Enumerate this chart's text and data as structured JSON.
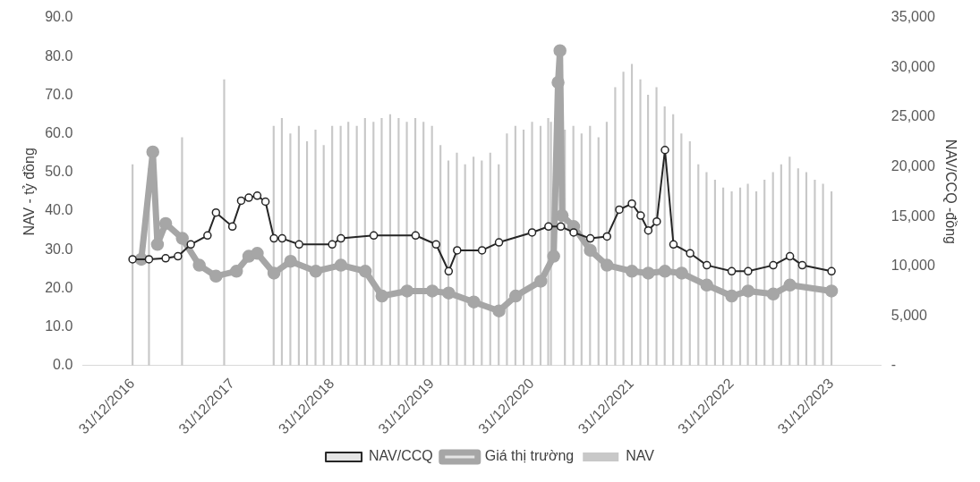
{
  "chart_data": {
    "type": "bar",
    "ylabel": "NAV - tỷ đồng",
    "y2label": "NAV/CCQ -đồng",
    "legend": "bottom",
    "grid": false,
    "xlim": [
      "2016-12-31",
      "2023-12-31"
    ],
    "xticks": [
      {
        "value": "2016-12-31",
        "label": "31/12/2016"
      },
      {
        "value": "2017-12-31",
        "label": "31/12/2017"
      },
      {
        "value": "2018-12-31",
        "label": "31/12/2018"
      },
      {
        "value": "2019-12-31",
        "label": "31/12/2019"
      },
      {
        "value": "2020-12-31",
        "label": "31/12/2020"
      },
      {
        "value": "2021-12-31",
        "label": "31/12/2021"
      },
      {
        "value": "2022-12-31",
        "label": "31/12/2022"
      },
      {
        "value": "2023-12-31",
        "label": "31/12/2023"
      }
    ],
    "ylim": [
      0,
      90
    ],
    "yticks": [
      {
        "value": 0,
        "label": "0.0"
      },
      {
        "value": 10,
        "label": "10.0"
      },
      {
        "value": 20,
        "label": "20.0"
      },
      {
        "value": 30,
        "label": "30.0"
      },
      {
        "value": 40,
        "label": "40.0"
      },
      {
        "value": 50,
        "label": "50.0"
      },
      {
        "value": 60,
        "label": "60.0"
      },
      {
        "value": 70,
        "label": "70.0"
      },
      {
        "value": 80,
        "label": "80.0"
      },
      {
        "value": 90,
        "label": "90.0"
      }
    ],
    "y2lim": [
      0,
      35000
    ],
    "y2ticks": [
      {
        "value": 0,
        "label": "-"
      },
      {
        "value": 5000,
        "label": "5,000"
      },
      {
        "value": 10000,
        "label": "10,000"
      },
      {
        "value": 15000,
        "label": "15,000"
      },
      {
        "value": 20000,
        "label": "20,000"
      },
      {
        "value": 25000,
        "label": "25,000"
      },
      {
        "value": 30000,
        "label": "30,000"
      },
      {
        "value": 35000,
        "label": "35,000"
      }
    ],
    "series": [
      {
        "name": "NAV",
        "color": "#c8c8c8",
        "x": [
          "2016-12-31",
          "2017-03-01",
          "2017-06-30",
          "2017-12-01",
          "2018-05-31",
          "2018-06-30",
          "2018-07-31",
          "2018-08-31",
          "2018-09-30",
          "2018-10-31",
          "2018-11-30",
          "2018-12-31",
          "2019-01-31",
          "2019-02-28",
          "2019-03-31",
          "2019-04-30",
          "2019-05-31",
          "2019-06-30",
          "2019-07-31",
          "2019-08-31",
          "2019-09-30",
          "2019-10-31",
          "2019-11-30",
          "2019-12-31",
          "2020-01-31",
          "2020-02-29",
          "2020-03-31",
          "2020-04-30",
          "2020-05-31",
          "2020-06-30",
          "2020-07-31",
          "2020-08-31",
          "2020-09-30",
          "2020-10-31",
          "2020-11-30",
          "2020-12-31",
          "2021-01-31",
          "2021-02-28",
          "2021-03-10",
          "2021-04-30",
          "2021-05-31",
          "2021-06-30",
          "2021-07-31",
          "2021-08-31",
          "2021-09-30",
          "2021-10-31",
          "2021-11-30",
          "2021-12-31",
          "2022-01-31",
          "2022-02-28",
          "2022-03-31",
          "2022-04-30",
          "2022-05-31",
          "2022-06-30",
          "2022-07-31",
          "2022-08-31",
          "2022-09-30",
          "2022-10-31",
          "2022-11-30",
          "2022-12-31",
          "2023-01-31",
          "2023-02-28",
          "2023-03-31",
          "2023-04-30",
          "2023-05-31",
          "2023-06-30",
          "2023-07-31",
          "2023-08-31",
          "2023-09-30",
          "2023-10-31",
          "2023-11-30",
          "2023-12-31"
        ],
        "values": [
          52,
          51,
          59,
          74,
          62,
          64,
          60,
          62,
          58,
          61,
          57,
          62,
          62,
          63,
          62,
          64,
          63,
          64,
          65,
          64,
          63,
          64,
          63,
          62,
          57,
          53,
          55,
          52,
          54,
          53,
          55,
          52,
          60,
          62,
          61,
          63,
          62,
          64,
          63,
          61,
          62,
          60,
          62,
          59,
          63,
          72,
          76,
          78,
          74,
          70,
          72,
          67,
          65,
          60,
          58,
          52,
          50,
          48,
          46,
          45,
          46,
          47,
          45,
          48,
          50,
          52,
          54,
          51,
          50,
          48,
          47,
          45
        ]
      },
      {
        "name": "NAV/CCQ",
        "type": "line",
        "axis": "y2",
        "color": "#262626",
        "marker": "circle",
        "x": [
          "2016-12-31",
          "2017-03-01",
          "2017-05-01",
          "2017-06-15",
          "2017-08-01",
          "2017-10-01",
          "2017-11-01",
          "2017-12-31",
          "2018-02-01",
          "2018-03-01",
          "2018-04-01",
          "2018-05-01",
          "2018-06-01",
          "2018-07-01",
          "2018-09-01",
          "2018-12-31",
          "2019-02-01",
          "2019-06-01",
          "2019-11-01",
          "2020-01-15",
          "2020-03-01",
          "2020-04-01",
          "2020-07-01",
          "2020-09-01",
          "2020-12-31",
          "2021-03-01",
          "2021-04-15",
          "2021-06-01",
          "2021-08-01",
          "2021-10-01",
          "2021-11-15",
          "2021-12-31",
          "2022-02-01",
          "2022-03-01",
          "2022-04-01",
          "2022-05-01",
          "2022-06-01",
          "2022-08-01",
          "2022-10-01",
          "2022-12-31",
          "2023-03-01",
          "2023-06-01",
          "2023-08-01",
          "2023-09-15",
          "2023-12-31"
        ],
        "values": [
          10700,
          10700,
          10800,
          11000,
          12200,
          13100,
          15400,
          14000,
          16600,
          16900,
          17100,
          16500,
          12800,
          12800,
          12200,
          12200,
          12800,
          13100,
          13100,
          12200,
          9500,
          11600,
          11600,
          12400,
          13400,
          14000,
          14000,
          13400,
          12800,
          13000,
          15700,
          16300,
          15100,
          13600,
          14500,
          21700,
          12200,
          11300,
          10100,
          9500,
          9500,
          10100,
          11000,
          10100,
          9500
        ]
      },
      {
        "name": "Giá thị trường",
        "type": "line",
        "axis": "y2",
        "color": "#a6a6a6",
        "marker": "circle",
        "x": [
          "2017-02-01",
          "2017-03-15",
          "2017-04-01",
          "2017-05-01",
          "2017-07-01",
          "2017-09-01",
          "2017-11-01",
          "2018-01-15",
          "2018-03-01",
          "2018-04-01",
          "2018-06-01",
          "2018-08-01",
          "2018-11-01",
          "2019-02-01",
          "2019-05-01",
          "2019-07-01",
          "2019-10-01",
          "2020-01-01",
          "2020-03-01",
          "2020-06-01",
          "2020-09-01",
          "2020-11-01",
          "2021-02-01",
          "2021-03-20",
          "2021-04-05",
          "2021-04-12",
          "2021-04-20",
          "2021-06-01",
          "2021-08-01",
          "2021-10-01",
          "2021-12-31",
          "2022-03-01",
          "2022-05-01",
          "2022-07-01",
          "2022-10-01",
          "2022-12-31",
          "2023-03-01",
          "2023-06-01",
          "2023-08-01",
          "2023-12-31"
        ],
        "values": [
          10700,
          21500,
          12200,
          14300,
          12800,
          10100,
          9000,
          9500,
          11000,
          11300,
          9300,
          10500,
          9500,
          10100,
          9500,
          7000,
          7500,
          7500,
          7300,
          6400,
          5500,
          7000,
          8500,
          11000,
          28500,
          31700,
          15100,
          14000,
          11600,
          10100,
          9500,
          9300,
          9500,
          9300,
          8100,
          7000,
          7500,
          7200,
          8100,
          7500
        ]
      }
    ]
  }
}
